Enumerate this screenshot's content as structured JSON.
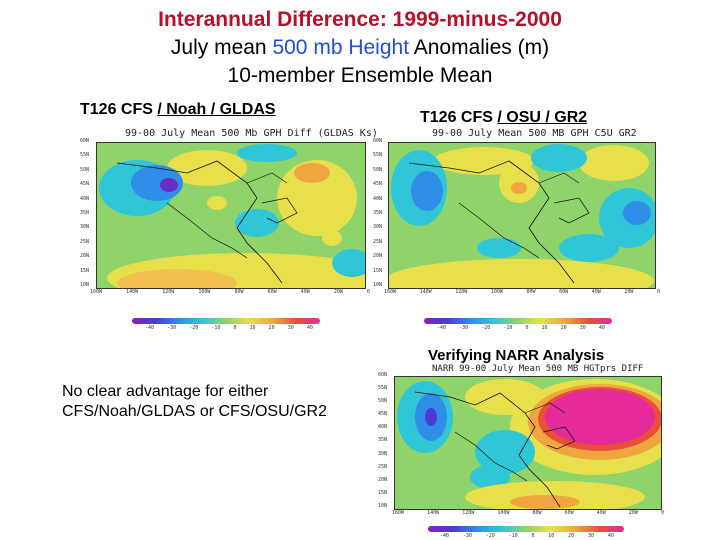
{
  "title": {
    "line1": "Interannual Difference: 1999-minus-2000",
    "line2_pre": "July mean ",
    "line2_hl": "500 mb Height",
    "line2_post": " Anomalies (m)",
    "line3": "10-member Ensemble Mean"
  },
  "panels": [
    {
      "label_pre": "T126 CFS ",
      "label_u": "/ Noah / GLDAS",
      "map_title": "99-00 July Mean 500 Mb GPH Diff (GLDAS Ks)"
    },
    {
      "label_pre": "T126 CFS ",
      "label_u": "/ OSU / GR2",
      "map_title": "99-00 July Mean 500 MB GPH C5U GR2"
    },
    {
      "label_pre": "",
      "label_u": "",
      "label_full": "Verifying NARR Analysis",
      "map_title": "NARR 99-00 July Mean 500 MB HGTprs DIFF"
    }
  ],
  "axes": {
    "lat_ticks": [
      "60N",
      "55N",
      "50N",
      "45N",
      "40N",
      "35N",
      "30N",
      "25N",
      "20N",
      "15N",
      "10N"
    ],
    "lon_ticks": [
      "160W",
      "140W",
      "120W",
      "100W",
      "80W",
      "60W",
      "40W",
      "20W",
      "0"
    ]
  },
  "colorbar": {
    "labels": [
      "-40",
      "-30",
      "-20",
      "-10",
      "0",
      "10",
      "20",
      "30",
      "40"
    ],
    "colors": [
      "#8a1ec8",
      "#4a3ccf",
      "#2f8fe8",
      "#2fc7d8",
      "#8fd46a",
      "#e8e04a",
      "#f0a640",
      "#e8503a",
      "#e62a9a"
    ]
  },
  "conclusion": {
    "line1": "No clear advantage for either",
    "line2": "CFS/Noah/GLDAS or CFS/OSU/GR2"
  }
}
